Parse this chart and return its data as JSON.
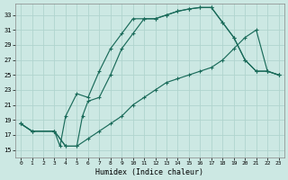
{
  "xlabel": "Humidex (Indice chaleur)",
  "bg_color": "#cce8e3",
  "grid_color": "#b0d4ce",
  "line_color": "#1a6b5a",
  "xlim": [
    -0.5,
    23.5
  ],
  "ylim": [
    14.0,
    34.5
  ],
  "yticks": [
    15,
    17,
    19,
    21,
    23,
    25,
    27,
    29,
    31,
    33
  ],
  "xticks": [
    0,
    1,
    2,
    3,
    4,
    5,
    6,
    7,
    8,
    9,
    10,
    11,
    12,
    13,
    14,
    15,
    16,
    17,
    18,
    19,
    20,
    21,
    22,
    23
  ],
  "curve1_x": [
    0,
    1,
    3,
    3.5,
    4,
    5,
    6,
    7,
    8,
    9,
    10,
    11,
    12,
    13,
    14,
    15,
    16,
    17,
    18,
    19,
    20,
    21,
    22,
    23
  ],
  "curve1_y": [
    18.5,
    17.5,
    17.5,
    15.5,
    19.5,
    22.5,
    22.0,
    25.5,
    28.5,
    30.5,
    32.5,
    32.5,
    32.5,
    33.0,
    33.5,
    33.8,
    34.0,
    34.0,
    32.0,
    30.0,
    27.0,
    25.5,
    25.5,
    25.0
  ],
  "curve2_x": [
    0,
    1,
    3,
    4,
    5,
    5.5,
    6,
    7,
    8,
    9,
    10,
    11,
    12,
    13,
    14,
    15,
    16,
    17,
    18,
    19,
    20,
    21,
    22,
    23
  ],
  "curve2_y": [
    18.5,
    17.5,
    17.5,
    15.5,
    15.5,
    19.5,
    21.5,
    22.0,
    25.0,
    28.5,
    30.5,
    32.5,
    32.5,
    33.0,
    33.5,
    33.8,
    34.0,
    34.0,
    32.0,
    30.0,
    27.0,
    25.5,
    25.5,
    25.0
  ],
  "curve3_x": [
    0,
    1,
    3,
    4,
    5,
    6,
    7,
    8,
    9,
    10,
    11,
    12,
    13,
    14,
    15,
    16,
    17,
    18,
    19,
    20,
    21,
    22,
    23
  ],
  "curve3_y": [
    18.5,
    17.5,
    17.5,
    15.5,
    15.5,
    16.5,
    17.5,
    18.5,
    19.5,
    21.0,
    22.0,
    23.0,
    24.0,
    24.5,
    25.0,
    25.5,
    26.0,
    27.0,
    28.5,
    30.0,
    31.0,
    25.5,
    25.0
  ]
}
